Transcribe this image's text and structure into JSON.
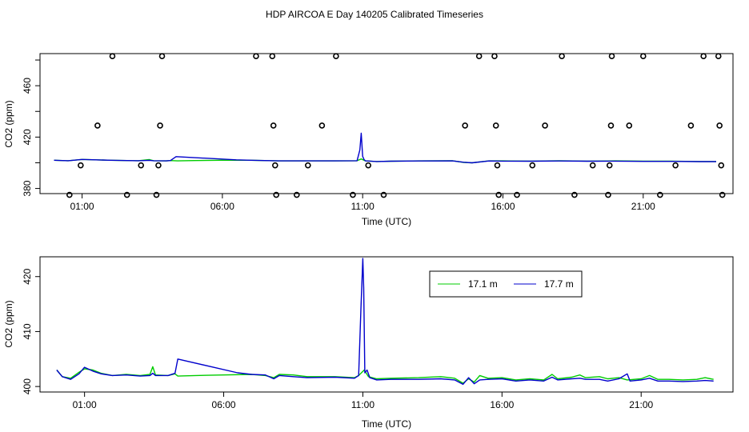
{
  "title": "HDP AIRCOA E  Day 140205  Calibrated Timeseries",
  "chart_data": [
    {
      "type": "scatter",
      "xlabel": "Time (UTC)",
      "ylabel": "CO2 (ppm)",
      "xlim": [
        -0.5,
        24.2
      ],
      "ylim": [
        376,
        485
      ],
      "xticks": [
        "01:00",
        "06:00",
        "11:00",
        "16:00",
        "21:00"
      ],
      "xtick_values": [
        1,
        6,
        11,
        16,
        21
      ],
      "yticks": [
        "380",
        "420",
        "460"
      ],
      "ytick_values": [
        380,
        420,
        460
      ],
      "calibration_points": [
        [
          0.55,
          375
        ],
        [
          0.95,
          398
        ],
        [
          1.55,
          429
        ],
        [
          2.08,
          483
        ],
        [
          2.6,
          375
        ],
        [
          3.1,
          398
        ],
        [
          3.65,
          375
        ],
        [
          3.72,
          398
        ],
        [
          3.78,
          429
        ],
        [
          3.85,
          483
        ],
        [
          7.2,
          483
        ],
        [
          7.78,
          483
        ],
        [
          7.82,
          429
        ],
        [
          7.88,
          398
        ],
        [
          7.92,
          375
        ],
        [
          8.65,
          375
        ],
        [
          9.05,
          398
        ],
        [
          9.55,
          429
        ],
        [
          10.05,
          483
        ],
        [
          10.65,
          375
        ],
        [
          11.2,
          398
        ],
        [
          11.75,
          375
        ],
        [
          14.65,
          429
        ],
        [
          15.15,
          483
        ],
        [
          15.7,
          483
        ],
        [
          15.75,
          429
        ],
        [
          15.8,
          398
        ],
        [
          15.85,
          375
        ],
        [
          16.5,
          375
        ],
        [
          17.05,
          398
        ],
        [
          17.5,
          429
        ],
        [
          18.1,
          483
        ],
        [
          18.55,
          375
        ],
        [
          19.2,
          398
        ],
        [
          19.75,
          375
        ],
        [
          19.8,
          398
        ],
        [
          19.85,
          429
        ],
        [
          19.88,
          483
        ],
        [
          20.5,
          429
        ],
        [
          21.0,
          483
        ],
        [
          21.6,
          375
        ],
        [
          22.15,
          398
        ],
        [
          22.7,
          429
        ],
        [
          23.15,
          483
        ],
        [
          23.68,
          483
        ],
        [
          23.72,
          429
        ],
        [
          23.78,
          398
        ],
        [
          23.82,
          375
        ]
      ],
      "series": [
        {
          "name": "17.1 m",
          "color": "#00cc00",
          "points": [
            [
              0,
              402
            ],
            [
              0.5,
              401.6
            ],
            [
              1,
              402.6
            ],
            [
              1.5,
              402.3
            ],
            [
              2,
              402
            ],
            [
              3,
              401.6
            ],
            [
              3.4,
              402.5
            ],
            [
              3.55,
              401.6
            ],
            [
              4,
              401.5
            ],
            [
              4.15,
              401.7
            ],
            [
              4.4,
              401.5
            ],
            [
              5,
              401.7
            ],
            [
              6,
              402
            ],
            [
              7,
              402
            ],
            [
              8,
              401.5
            ],
            [
              9,
              401.5
            ],
            [
              10,
              401.5
            ],
            [
              10.8,
              401.6
            ],
            [
              10.95,
              403
            ],
            [
              11.1,
              401.5
            ],
            [
              11.5,
              401
            ],
            [
              12,
              401.2
            ],
            [
              13,
              401.5
            ],
            [
              14.2,
              401.6
            ],
            [
              14.6,
              400.3
            ],
            [
              14.9,
              400
            ],
            [
              15.5,
              401.5
            ],
            [
              16,
              401.5
            ],
            [
              17,
              401.3
            ],
            [
              18,
              401.6
            ],
            [
              19,
              401.3
            ],
            [
              20,
              401.5
            ],
            [
              21,
              401.2
            ],
            [
              22,
              401.2
            ],
            [
              23,
              401
            ],
            [
              23.6,
              401
            ]
          ]
        },
        {
          "name": "17.7 m",
          "color": "#0000cc",
          "points": [
            [
              0,
              402
            ],
            [
              0.5,
              401.6
            ],
            [
              1,
              402.6
            ],
            [
              1.5,
              402.3
            ],
            [
              2,
              402
            ],
            [
              3,
              401.6
            ],
            [
              3.4,
              401.9
            ],
            [
              3.55,
              401.6
            ],
            [
              4,
              401.5
            ],
            [
              4.15,
              401.7
            ],
            [
              4.35,
              404.8
            ],
            [
              6.5,
              402.3
            ],
            [
              7,
              402
            ],
            [
              8,
              401.5
            ],
            [
              9,
              401.5
            ],
            [
              10,
              401.5
            ],
            [
              10.8,
              401.6
            ],
            [
              10.9,
              410
            ],
            [
              10.95,
              423
            ],
            [
              11.0,
              405
            ],
            [
              11.05,
              402.5
            ],
            [
              11.1,
              401.5
            ],
            [
              11.5,
              401
            ],
            [
              12,
              401.2
            ],
            [
              13,
              401.4
            ],
            [
              14.2,
              401.5
            ],
            [
              14.6,
              400.4
            ],
            [
              14.9,
              400
            ],
            [
              15.5,
              401.4
            ],
            [
              16,
              401.3
            ],
            [
              17,
              401.2
            ],
            [
              18,
              401.4
            ],
            [
              19,
              401.2
            ],
            [
              20,
              401.3
            ],
            [
              21,
              401.1
            ],
            [
              22,
              401.1
            ],
            [
              23,
              400.9
            ],
            [
              23.6,
              400.9
            ]
          ]
        }
      ]
    },
    {
      "type": "line",
      "xlabel": "Time (UTC)",
      "ylabel": "CO2 (ppm)",
      "xlim": [
        -0.6,
        24.3
      ],
      "ylim": [
        399,
        423.6
      ],
      "xticks": [
        "01:00",
        "06:00",
        "11:00",
        "16:00",
        "21:00"
      ],
      "xtick_values": [
        1,
        6,
        11,
        16,
        21
      ],
      "yticks": [
        "400",
        "410",
        "420"
      ],
      "ytick_values": [
        400,
        410,
        420
      ],
      "legend": "top-right",
      "series": [
        {
          "name": "17.1 m",
          "color": "#00cc00",
          "points": [
            [
              0,
              403
            ],
            [
              0.2,
              401.8
            ],
            [
              0.5,
              401.5
            ],
            [
              0.8,
              402.6
            ],
            [
              1,
              403.2
            ],
            [
              1.3,
              403
            ],
            [
              1.6,
              402.4
            ],
            [
              2,
              402
            ],
            [
              2.5,
              402.2
            ],
            [
              3,
              402
            ],
            [
              3.35,
              402.2
            ],
            [
              3.45,
              403.6
            ],
            [
              3.55,
              402.1
            ],
            [
              4,
              402
            ],
            [
              4.25,
              402.3
            ],
            [
              4.35,
              401.9
            ],
            [
              5,
              402
            ],
            [
              6,
              402.1
            ],
            [
              7,
              402.2
            ],
            [
              7.5,
              402
            ],
            [
              7.8,
              401.6
            ],
            [
              8,
              402.2
            ],
            [
              8.5,
              402.1
            ],
            [
              9,
              401.8
            ],
            [
              10,
              401.8
            ],
            [
              10.7,
              401.6
            ],
            [
              10.85,
              402
            ],
            [
              11.05,
              403
            ],
            [
              11.2,
              401.8
            ],
            [
              11.5,
              401.4
            ],
            [
              12,
              401.5
            ],
            [
              13,
              401.6
            ],
            [
              13.8,
              401.8
            ],
            [
              14.3,
              401.5
            ],
            [
              14.6,
              400.6
            ],
            [
              14.8,
              401.4
            ],
            [
              15,
              400.8
            ],
            [
              15.2,
              402
            ],
            [
              15.5,
              401.5
            ],
            [
              16,
              401.6
            ],
            [
              16.5,
              401.2
            ],
            [
              17,
              401.4
            ],
            [
              17.5,
              401.2
            ],
            [
              17.8,
              402.2
            ],
            [
              18,
              401.4
            ],
            [
              18.5,
              401.7
            ],
            [
              18.8,
              402.1
            ],
            [
              19,
              401.6
            ],
            [
              19.5,
              401.8
            ],
            [
              19.8,
              401.4
            ],
            [
              20.2,
              401.6
            ],
            [
              20.5,
              401.2
            ],
            [
              21,
              401.4
            ],
            [
              21.3,
              402
            ],
            [
              21.6,
              401.3
            ],
            [
              22,
              401.3
            ],
            [
              22.5,
              401.2
            ],
            [
              23,
              401.3
            ],
            [
              23.3,
              401.6
            ],
            [
              23.6,
              401.3
            ]
          ]
        },
        {
          "name": "17.7 m",
          "color": "#0000cc",
          "points": [
            [
              0,
              403
            ],
            [
              0.2,
              401.8
            ],
            [
              0.5,
              401.3
            ],
            [
              0.8,
              402.3
            ],
            [
              1,
              403.5
            ],
            [
              1.3,
              402.8
            ],
            [
              1.6,
              402.3
            ],
            [
              2,
              402
            ],
            [
              2.5,
              402.1
            ],
            [
              3,
              401.9
            ],
            [
              3.35,
              402
            ],
            [
              3.45,
              402.4
            ],
            [
              3.55,
              402
            ],
            [
              4,
              402
            ],
            [
              4.25,
              402.4
            ],
            [
              4.35,
              405
            ],
            [
              6.5,
              402.5
            ],
            [
              7,
              402.2
            ],
            [
              7.5,
              402.1
            ],
            [
              7.8,
              401.4
            ],
            [
              8,
              402
            ],
            [
              8.5,
              401.8
            ],
            [
              9,
              401.6
            ],
            [
              10,
              401.7
            ],
            [
              10.7,
              401.5
            ],
            [
              10.85,
              402
            ],
            [
              10.93,
              414
            ],
            [
              11.0,
              423.3
            ],
            [
              11.03,
              418
            ],
            [
              11.07,
              402.5
            ],
            [
              11.15,
              403
            ],
            [
              11.25,
              401.6
            ],
            [
              11.5,
              401.2
            ],
            [
              12,
              401.3
            ],
            [
              13,
              401.3
            ],
            [
              13.8,
              401.4
            ],
            [
              14.3,
              401.2
            ],
            [
              14.6,
              400.4
            ],
            [
              14.8,
              401.6
            ],
            [
              15,
              400.5
            ],
            [
              15.2,
              401.2
            ],
            [
              15.5,
              401.3
            ],
            [
              16,
              401.4
            ],
            [
              16.5,
              401
            ],
            [
              17,
              401.2
            ],
            [
              17.5,
              401
            ],
            [
              17.8,
              401.7
            ],
            [
              18,
              401.2
            ],
            [
              18.5,
              401.4
            ],
            [
              18.8,
              401.5
            ],
            [
              19,
              401.3
            ],
            [
              19.5,
              401.3
            ],
            [
              19.8,
              401
            ],
            [
              20.2,
              401.4
            ],
            [
              20.5,
              402.3
            ],
            [
              20.6,
              401
            ],
            [
              21,
              401.2
            ],
            [
              21.3,
              401.5
            ],
            [
              21.6,
              401
            ],
            [
              22,
              401
            ],
            [
              22.5,
              400.9
            ],
            [
              23,
              401
            ],
            [
              23.3,
              401.1
            ],
            [
              23.6,
              401
            ]
          ]
        }
      ]
    }
  ]
}
